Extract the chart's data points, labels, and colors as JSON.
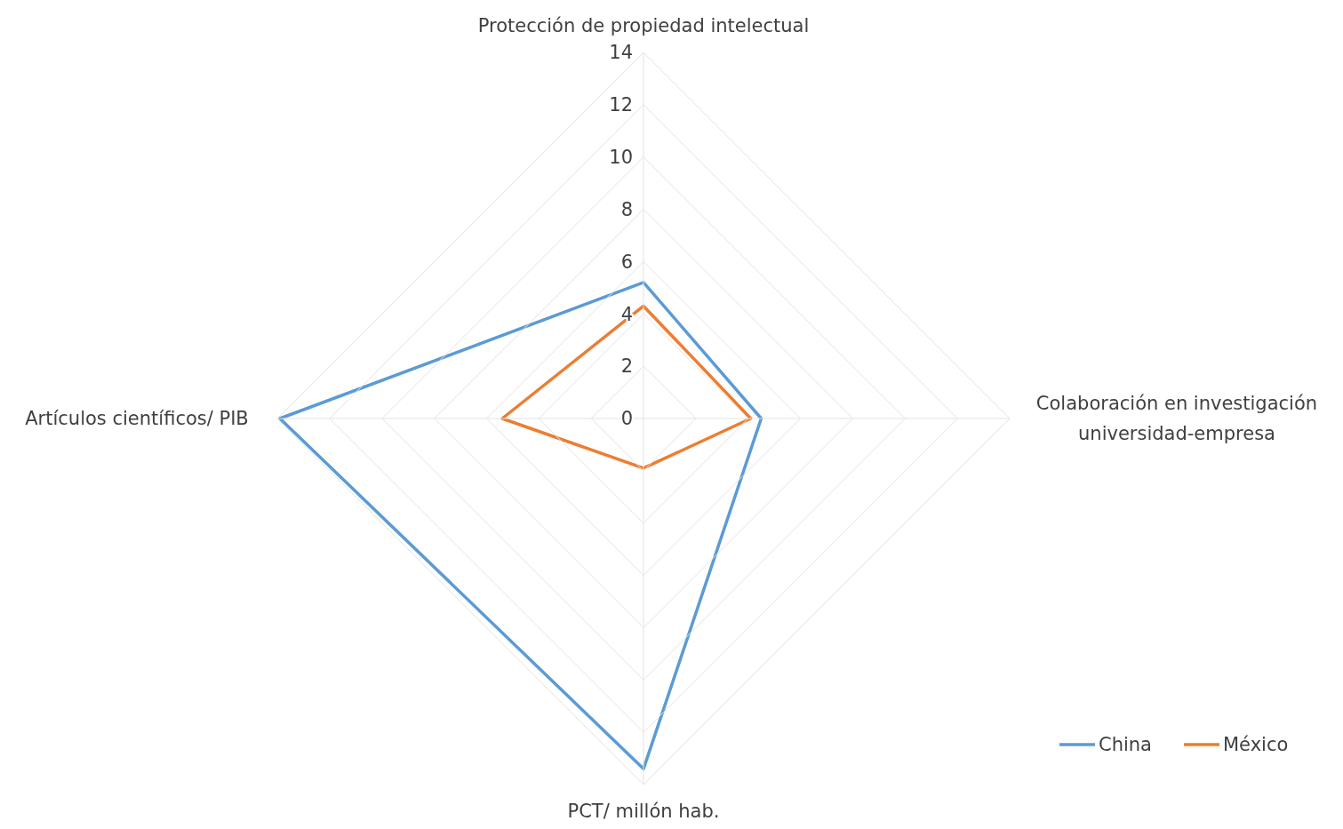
{
  "chart_data": {
    "type": "radar",
    "categories": [
      "Protección de propiedad intelectual",
      "Colaboración en investigación universidad-empresa",
      "PCT/ millón hab.",
      "Artículos científicos/ PIB"
    ],
    "series": [
      {
        "name": "China",
        "color": "#5b9bd5",
        "values": [
          5.2,
          4.5,
          13.4,
          13.9
        ]
      },
      {
        "name": "México",
        "color": "#ed7d31",
        "values": [
          4.3,
          4.1,
          1.9,
          5.4
        ]
      }
    ],
    "ylim": [
      0,
      14
    ],
    "yticks": [
      0,
      2,
      4,
      6,
      8,
      10,
      12,
      14
    ],
    "grid": true,
    "legend": "bottom right",
    "marker": "none",
    "line_style": "solid"
  }
}
